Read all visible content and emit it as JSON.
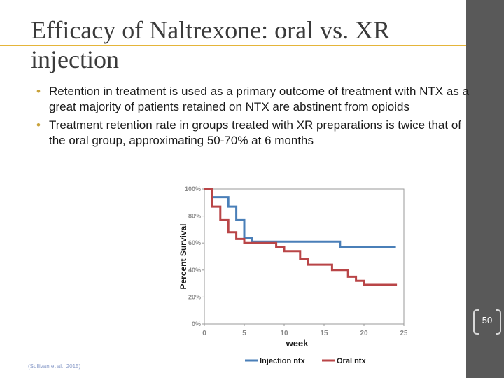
{
  "slide": {
    "title": "Efficacy of Naltrexone: oral vs. XR injection",
    "bullets": [
      "Retention in treatment is used as a primary outcome of treatment with NTX as a great majority of patients retained on NTX are abstinent from opioids",
      "Treatment retention rate in groups treated with XR preparations is twice that of the oral group, approximating 50-70% at 6 months"
    ],
    "citation": "(Sullivan et al., 2015)",
    "page_number": "50"
  },
  "colors": {
    "accent": "#e5b53a",
    "sidebar": "#595959",
    "injection": "#4a7fb8",
    "oral": "#b94547"
  },
  "chart_data": {
    "type": "line",
    "xlabel": "week",
    "ylabel": "Percent Survival",
    "xlim": [
      0,
      25
    ],
    "ylim": [
      0,
      100
    ],
    "x_ticks": [
      "0",
      "5",
      "10",
      "15",
      "20",
      "25"
    ],
    "y_ticks": [
      "0%",
      "20%",
      "40%",
      "60%",
      "80%",
      "100%"
    ],
    "step": true,
    "legend_position": "bottom",
    "series": [
      {
        "name": "Injection ntx",
        "color": "#4a7fb8",
        "points": [
          [
            0,
            100
          ],
          [
            1,
            100
          ],
          [
            1,
            94
          ],
          [
            3,
            94
          ],
          [
            3,
            87
          ],
          [
            4,
            87
          ],
          [
            4,
            77
          ],
          [
            5,
            77
          ],
          [
            5,
            64
          ],
          [
            6,
            64
          ],
          [
            6,
            61
          ],
          [
            17,
            61
          ],
          [
            17,
            57
          ],
          [
            24,
            57
          ]
        ]
      },
      {
        "name": "Oral ntx",
        "color": "#b94547",
        "points": [
          [
            0,
            100
          ],
          [
            1,
            100
          ],
          [
            1,
            87
          ],
          [
            2,
            87
          ],
          [
            2,
            77
          ],
          [
            3,
            77
          ],
          [
            3,
            68
          ],
          [
            4,
            68
          ],
          [
            4,
            63
          ],
          [
            5,
            63
          ],
          [
            5,
            60
          ],
          [
            9,
            60
          ],
          [
            9,
            57
          ],
          [
            10,
            57
          ],
          [
            10,
            54
          ],
          [
            12,
            54
          ],
          [
            12,
            48
          ],
          [
            13,
            48
          ],
          [
            13,
            44
          ],
          [
            16,
            44
          ],
          [
            16,
            40
          ],
          [
            18,
            40
          ],
          [
            18,
            35
          ],
          [
            19,
            35
          ],
          [
            19,
            32
          ],
          [
            20,
            32
          ],
          [
            20,
            29
          ],
          [
            24,
            29
          ],
          [
            24,
            28
          ]
        ]
      }
    ]
  }
}
